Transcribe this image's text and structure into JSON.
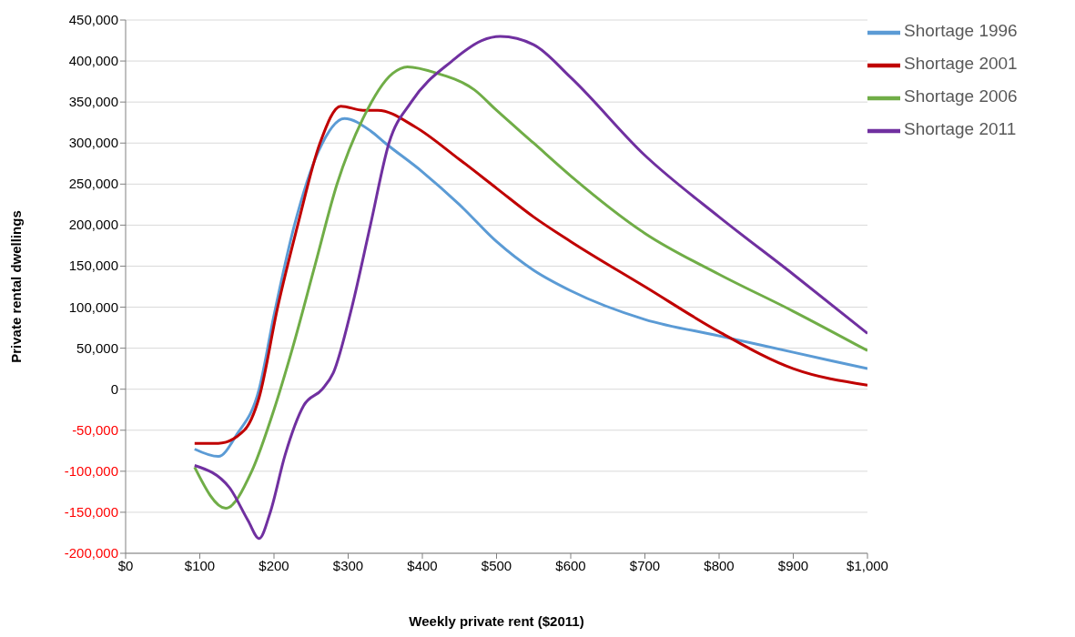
{
  "chart_data": {
    "type": "line",
    "xlabel": "Weekly private rent ($2011)",
    "ylabel": "Private rental dwellings",
    "xlim": [
      0,
      1000
    ],
    "xticks": [
      {
        "value": 0,
        "label": "$0"
      },
      {
        "value": 100,
        "label": "$100"
      },
      {
        "value": 200,
        "label": "$200"
      },
      {
        "value": 300,
        "label": "$300"
      },
      {
        "value": 400,
        "label": "$400"
      },
      {
        "value": 500,
        "label": "$500"
      },
      {
        "value": 600,
        "label": "$600"
      },
      {
        "value": 700,
        "label": "$700"
      },
      {
        "value": 800,
        "label": "$800"
      },
      {
        "value": 900,
        "label": "$900"
      },
      {
        "value": 1000,
        "label": "$1,000"
      }
    ],
    "ylim": [
      -200000,
      450000
    ],
    "yticks": [
      {
        "value": -200000,
        "label": "-200,000"
      },
      {
        "value": -150000,
        "label": "-150,000"
      },
      {
        "value": -100000,
        "label": "-100,000"
      },
      {
        "value": -50000,
        "label": "-50,000"
      },
      0,
      {
        "value": 50000,
        "label": "50,000"
      },
      {
        "value": 100000,
        "label": "100,000"
      },
      {
        "value": 150000,
        "label": "150,000"
      },
      {
        "value": 200000,
        "label": "200,000"
      },
      {
        "value": 250000,
        "label": "250,000"
      },
      {
        "value": 300000,
        "label": "300,000"
      },
      {
        "value": 350000,
        "label": "350,000"
      },
      {
        "value": 400000,
        "label": "400,000"
      },
      {
        "value": 450000,
        "label": "450,000"
      }
    ],
    "grid": "y",
    "legend": "top right",
    "marker": "none",
    "line_style": "solid",
    "series": [
      {
        "name": "Shortage 1996",
        "color": "#5b9bd5",
        "x": [
          93,
          125,
          150,
          180,
          200,
          227,
          260,
          295,
          330,
          350,
          400,
          450,
          500,
          550,
          600,
          700,
          800,
          900,
          1000
        ],
        "values": [
          -73000,
          -82000,
          -55000,
          0,
          90000,
          198000,
          290000,
          330000,
          315000,
          300000,
          265000,
          225000,
          180000,
          145000,
          120000,
          85000,
          65000,
          45000,
          25000
        ]
      },
      {
        "name": "Shortage 2001",
        "color": "#c00000",
        "x": [
          93,
          125,
          160,
          180,
          205,
          232,
          262,
          290,
          320,
          340,
          390,
          450,
          500,
          550,
          600,
          700,
          800,
          900,
          1000
        ],
        "values": [
          -66000,
          -66000,
          -50000,
          -10000,
          100000,
          200000,
          300000,
          345000,
          340000,
          340000,
          320000,
          280000,
          245000,
          210000,
          180000,
          125000,
          70000,
          25000,
          5000
        ]
      },
      {
        "name": "Shortage 2006",
        "color": "#70ad47",
        "x": [
          93,
          135,
          170,
          200,
          225,
          255,
          285,
          320,
          360,
          380,
          420,
          470,
          500,
          550,
          600,
          700,
          800,
          900,
          1000
        ],
        "values": [
          -95000,
          -145000,
          -100000,
          -25000,
          50000,
          150000,
          250000,
          330000,
          385000,
          393000,
          385000,
          365000,
          340000,
          300000,
          260000,
          190000,
          140000,
          95000,
          47000
        ]
      },
      {
        "name": "Shortage 2011",
        "color": "#7030a0",
        "x": [
          93,
          140,
          165,
          180,
          195,
          215,
          240,
          265,
          280,
          305,
          330,
          355,
          385,
          440,
          480,
          505,
          550,
          600,
          700,
          800,
          900,
          1000
        ],
        "values": [
          -93000,
          -120000,
          -160000,
          -182000,
          -150000,
          -80000,
          -20000,
          0,
          20000,
          100000,
          200000,
          300000,
          350000,
          400000,
          425000,
          430000,
          420000,
          380000,
          285000,
          210000,
          140000,
          68000
        ]
      }
    ]
  }
}
